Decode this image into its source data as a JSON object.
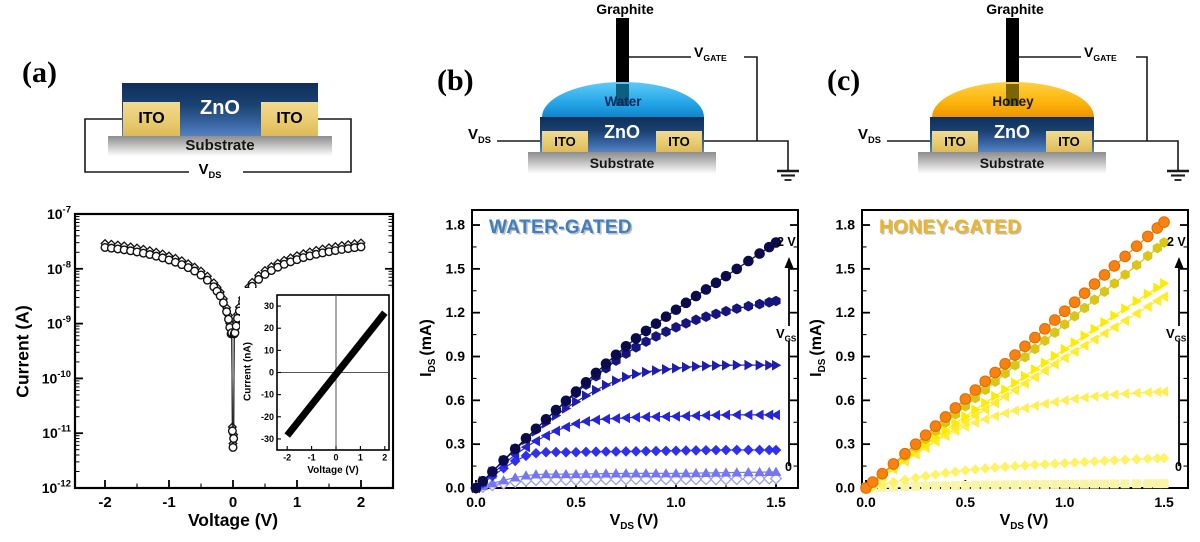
{
  "figure": {
    "panel_a": {
      "label": "(a)",
      "schematic": {
        "zno": "ZnO",
        "ito": "ITO",
        "substrate": "Substrate",
        "vds_sym": "V",
        "vds_sub": "DS"
      }
    },
    "panel_b": {
      "label": "(b)",
      "schematic": {
        "graphite": "Graphite",
        "liquid": "Water",
        "zno": "ZnO",
        "ito": "ITO",
        "substrate": "Substrate",
        "vds_sym": "V",
        "vds_sub": "DS",
        "vgate_sym": "V",
        "vgate_sub": "GATE"
      }
    },
    "panel_c": {
      "label": "(c)",
      "schematic": {
        "graphite": "Graphite",
        "liquid": "Honey",
        "zno": "ZnO",
        "ito": "ITO",
        "substrate": "Substrate",
        "vds_sym": "V",
        "vds_sub": "DS",
        "vgate_sym": "V",
        "vgate_sub": "GATE"
      }
    },
    "colors": {
      "water_dome": "#29a9e9",
      "honey_dome": "#fdb60d",
      "zno": "#2c5c9e",
      "ito": "#e9cc70",
      "graphite": "#000000"
    }
  },
  "chart_data": [
    {
      "name": "panel-a-two-terminal-iv",
      "type": "scatter",
      "y_scale_type": "log",
      "xlabel": "Voltage (V)",
      "ylabel": "Current (A)",
      "xlim": [
        -2.5,
        2.5
      ],
      "x_ticks": [
        -2,
        -1,
        0,
        1,
        2
      ],
      "y_decades": [
        -7,
        -12
      ],
      "points_V_A": [
        [
          -2.0,
          2.45e-08
        ],
        [
          -1.9,
          2.38e-08
        ],
        [
          -1.8,
          2.3e-08
        ],
        [
          -1.7,
          2.22e-08
        ],
        [
          -1.6,
          2.13e-08
        ],
        [
          -1.5,
          2.03e-08
        ],
        [
          -1.4,
          1.93e-08
        ],
        [
          -1.3,
          1.82e-08
        ],
        [
          -1.2,
          1.7e-08
        ],
        [
          -1.1,
          1.58e-08
        ],
        [
          -1.0,
          1.45e-08
        ],
        [
          -0.9,
          1.32e-08
        ],
        [
          -0.8,
          1.19e-08
        ],
        [
          -0.7,
          1.05e-08
        ],
        [
          -0.6,
          9.1e-09
        ],
        [
          -0.5,
          7.7e-09
        ],
        [
          -0.4,
          6.2e-09
        ],
        [
          -0.3,
          4.7e-09
        ],
        [
          -0.25,
          3.9e-09
        ],
        [
          -0.2,
          3.2e-09
        ],
        [
          -0.15,
          2.4e-09
        ],
        [
          -0.1,
          1.65e-09
        ],
        [
          -0.07,
          1.2e-09
        ],
        [
          -0.05,
          8.5e-10
        ],
        [
          -0.03,
          6.5e-10
        ],
        [
          -0.02,
          6.8e-10
        ],
        [
          -0.01,
          1.1e-11
        ],
        [
          0.0,
          5.5e-12
        ],
        [
          0.01,
          8e-12
        ],
        [
          0.02,
          6.5e-10
        ],
        [
          0.03,
          6.8e-10
        ],
        [
          0.05,
          9e-10
        ],
        [
          0.07,
          1.25e-09
        ],
        [
          0.1,
          1.7e-09
        ],
        [
          0.15,
          2.5e-09
        ],
        [
          0.2,
          3.3e-09
        ],
        [
          0.25,
          4e-09
        ],
        [
          0.3,
          4.8e-09
        ],
        [
          0.4,
          6.4e-09
        ],
        [
          0.5,
          7.9e-09
        ],
        [
          0.6,
          9.3e-09
        ],
        [
          0.7,
          1.07e-08
        ],
        [
          0.8,
          1.21e-08
        ],
        [
          0.9,
          1.34e-08
        ],
        [
          1.0,
          1.47e-08
        ],
        [
          1.1,
          1.6e-08
        ],
        [
          1.2,
          1.72e-08
        ],
        [
          1.3,
          1.84e-08
        ],
        [
          1.4,
          1.95e-08
        ],
        [
          1.5,
          2.05e-08
        ],
        [
          1.6,
          2.15e-08
        ],
        [
          1.7,
          2.25e-08
        ],
        [
          1.8,
          2.34e-08
        ],
        [
          1.9,
          2.43e-08
        ],
        [
          2.0,
          2.51e-08
        ]
      ],
      "series": [
        {
          "name": "sweep-diamonds",
          "marker": "diamond-open",
          "color": "#111111",
          "y_scale": 1.18
        },
        {
          "name": "sweep-circles",
          "marker": "circle-open",
          "color": "#111111",
          "y_scale": 1.0
        }
      ]
    },
    {
      "name": "panel-a-inset-linear-iv",
      "type": "line",
      "xlabel": "Voltage (V)",
      "ylabel": "Current (nA)",
      "xlim": [
        -2.5,
        2.5
      ],
      "ylim": [
        -35,
        35
      ],
      "x_ticks": [
        -2,
        -1,
        0,
        1,
        2
      ],
      "y_ticks": [
        -30,
        -20,
        -10,
        0,
        10,
        20,
        30
      ],
      "series": [
        {
          "name": "ohmic-band",
          "color": "#000000",
          "stroke_width": 7,
          "points": [
            [
              -2.0,
              -28.5
            ],
            [
              2.0,
              27.0
            ]
          ]
        }
      ]
    },
    {
      "name": "water-gated-output",
      "type": "line-scatter",
      "title": "WATER-GATED",
      "title_color": "#3f7fc1",
      "ylabel_parts": {
        "sym": "I",
        "sub": "DS",
        "unit": "(mA)"
      },
      "xlabel_parts": {
        "sym": "V",
        "sub": "DS",
        "unit": "(V)"
      },
      "xlim": [
        0,
        1.6
      ],
      "ylim": [
        0,
        1.9
      ],
      "x_ticks": [
        0.0,
        0.5,
        1.0,
        1.5
      ],
      "y_ticks": [
        0.0,
        0.3,
        0.6,
        0.9,
        1.2,
        1.5,
        1.8
      ],
      "gate": {
        "max": "2 V",
        "min": "0",
        "label_sym": "V",
        "label_sub": "GS"
      },
      "x_anchors": [
        0,
        0.25,
        0.5,
        0.75,
        1.0,
        1.25,
        1.5
      ],
      "series": [
        {
          "name": "vgs-max-2V",
          "marker": "circle",
          "color": "#0a0a4d",
          "values": [
            0,
            0.34,
            0.66,
            0.97,
            1.22,
            1.45,
            1.68
          ]
        },
        {
          "name": "vgs-step-6",
          "marker": "hexagon",
          "color": "#15157d",
          "values": [
            0,
            0.34,
            0.65,
            0.92,
            1.1,
            1.21,
            1.28
          ]
        },
        {
          "name": "vgs-step-5",
          "marker": "tri-right",
          "color": "#1d1daf",
          "values": [
            0,
            0.33,
            0.59,
            0.76,
            0.82,
            0.84,
            0.84
          ]
        },
        {
          "name": "vgs-step-4",
          "marker": "tri-left",
          "color": "#2525d8",
          "values": [
            0,
            0.28,
            0.44,
            0.48,
            0.49,
            0.5,
            0.5
          ]
        },
        {
          "name": "vgs-step-3",
          "marker": "diamond",
          "color": "#2f2ff0",
          "values": [
            0,
            0.22,
            0.245,
            0.25,
            0.255,
            0.26,
            0.26
          ]
        },
        {
          "name": "vgs-step-2",
          "marker": "tri-up",
          "color": "#7676f2",
          "values": [
            0,
            0.085,
            0.095,
            0.1,
            0.1,
            0.105,
            0.11
          ]
        },
        {
          "name": "vgs-min-0",
          "marker": "diamond-open",
          "color": "#9aa0f0",
          "values": [
            0,
            0.05,
            0.055,
            0.06,
            0.06,
            0.06,
            0.065
          ]
        }
      ]
    },
    {
      "name": "honey-gated-output",
      "type": "line-scatter",
      "title": "HONEY-GATED",
      "title_color": "#f0b41e",
      "ylabel_parts": {
        "sym": "I",
        "sub": "DS",
        "unit": "(mA)"
      },
      "xlabel_parts": {
        "sym": "V",
        "sub": "DS",
        "unit": "(V)"
      },
      "xlim": [
        0,
        1.6
      ],
      "ylim": [
        0,
        1.9
      ],
      "x_ticks": [
        0.0,
        0.5,
        1.0,
        1.5
      ],
      "y_ticks": [
        0.0,
        0.3,
        0.6,
        0.9,
        1.2,
        1.5,
        1.8
      ],
      "gate": {
        "max": "2 V",
        "min": "0",
        "label_sym": "V",
        "label_sub": "GS"
      },
      "x_anchors": [
        0,
        0.25,
        0.5,
        0.75,
        1.0,
        1.25,
        1.5
      ],
      "series": [
        {
          "name": "vgs-max-2V",
          "marker": "circle",
          "color": "#f8820f",
          "stroke": "#df6b00",
          "values": [
            0,
            0.3,
            0.61,
            0.91,
            1.21,
            1.52,
            1.82
          ]
        },
        {
          "name": "vgs-step-6",
          "marker": "hexagon",
          "color": "#d9c616",
          "values": [
            0,
            0.28,
            0.56,
            0.84,
            1.12,
            1.4,
            1.68
          ]
        },
        {
          "name": "vgs-step-5",
          "marker": "tri-right",
          "color": "#ffeb00",
          "values": [
            0,
            0.25,
            0.49,
            0.72,
            0.95,
            1.18,
            1.4
          ]
        },
        {
          "name": "vgs-step-4",
          "marker": "tri-left",
          "color": "#ffec2e",
          "values": [
            0,
            0.23,
            0.45,
            0.67,
            0.89,
            1.1,
            1.31
          ]
        },
        {
          "name": "vgs-step-3",
          "marker": "tri-left",
          "color": "#ffef55",
          "values": [
            0,
            0.24,
            0.42,
            0.53,
            0.6,
            0.64,
            0.66
          ]
        },
        {
          "name": "vgs-step-2",
          "marker": "diamond",
          "color": "#fff266",
          "values": [
            0,
            0.07,
            0.12,
            0.15,
            0.17,
            0.19,
            0.205
          ]
        },
        {
          "name": "vgs-min-0",
          "marker": "square",
          "color": "#faf4a6",
          "values": [
            0,
            0.012,
            0.018,
            0.022,
            0.025,
            0.028,
            0.03
          ]
        }
      ]
    }
  ]
}
